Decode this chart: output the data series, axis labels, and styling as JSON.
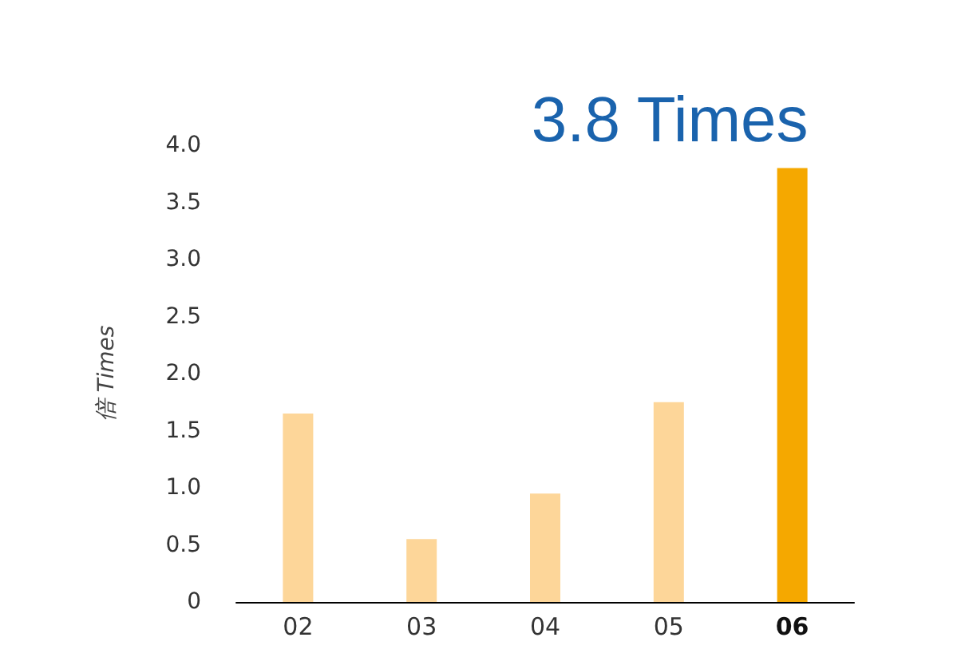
{
  "chart_data": {
    "type": "bar",
    "ylabel": "倍 Times",
    "categories": [
      "02",
      "03",
      "04",
      "05",
      "06"
    ],
    "values": [
      1.65,
      0.55,
      0.95,
      1.75,
      3.8
    ],
    "colors": [
      "#fdd699",
      "#fdd699",
      "#fdd699",
      "#fdd699",
      "#f5a800"
    ],
    "ylim": [
      0,
      4
    ],
    "yticks": [
      0,
      0.5,
      {
        "value": 1,
        "label": "1.0"
      },
      1.5,
      {
        "value": 2,
        "label": "2.0"
      },
      2.5,
      {
        "value": 3,
        "label": "3.0"
      },
      3.5,
      {
        "value": 4,
        "label": "4.0"
      }
    ],
    "annotations": [
      {
        "text": "3.8 Times",
        "x": "06",
        "y": 3.8
      }
    ],
    "grid": false
  }
}
